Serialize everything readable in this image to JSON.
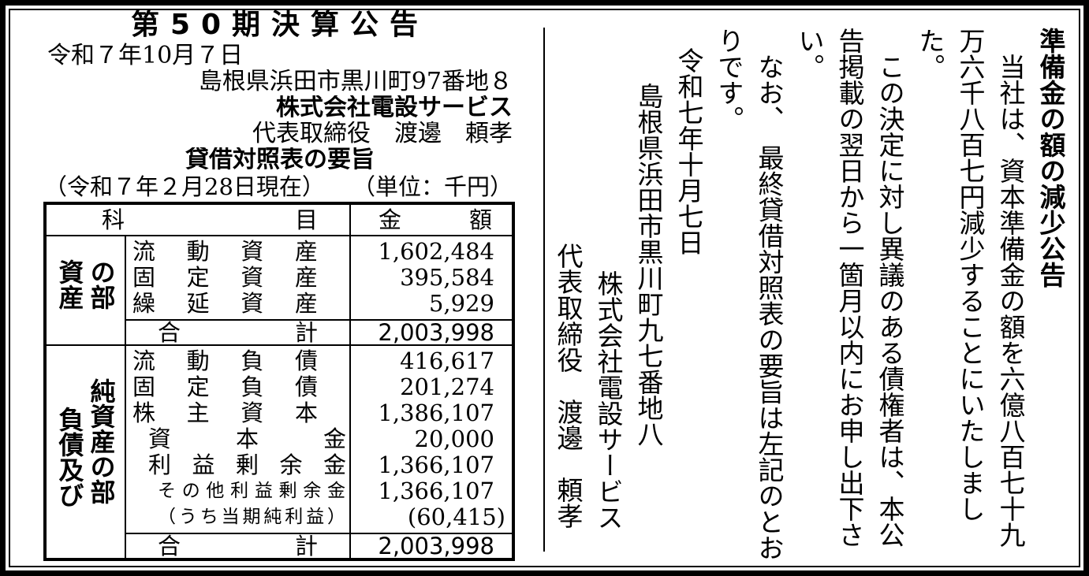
{
  "left": {
    "title": "第50期決算公告",
    "date": "令和７年10月７日",
    "address": "島根県浜田市黒川町97番地８",
    "company": "株式会社電設サービス",
    "representative": "代表取締役　渡邊　頼孝",
    "bs_title": "貸借対照表の要旨",
    "as_of": "（令和７年２月28日現在）",
    "unit": "（単位：千円）"
  },
  "table": {
    "header": {
      "item_1": "科",
      "item_2": "目",
      "amount_1": "金",
      "amount_2": "額"
    },
    "assets": {
      "section": "資産の部",
      "rows": [
        {
          "label": "流動資産",
          "value": "1,602,484"
        },
        {
          "label": "固定資産",
          "value": "395,584"
        },
        {
          "label": "繰延資産",
          "value": "5,929"
        }
      ],
      "total_label_1": "合",
      "total_label_2": "計",
      "total": "2,003,998"
    },
    "liabilities": {
      "section": "負債及び純資産の部",
      "rows": [
        {
          "label": "流動負債",
          "value": "416,617"
        },
        {
          "label": "固定負債",
          "value": "201,274"
        },
        {
          "label": "株主資本",
          "value": "1,386,107"
        },
        {
          "label": "資本金",
          "value": "20,000"
        },
        {
          "label": "利益剰余金",
          "value": "1,366,107"
        },
        {
          "label": "その他利益剰余金",
          "value": "1,366,107"
        },
        {
          "label": "（うち当期純利益）",
          "value": "(60,415)"
        }
      ],
      "total_label_1": "合",
      "total_label_2": "計",
      "total": "2,003,998"
    }
  },
  "notice": {
    "title": "準備金の額の減少公告",
    "lines": [
      "当社は、資本準備金の額を六億八百七十九",
      "万六千八百七円減少することにいたしまし",
      "た。",
      "この決定に対し異議のある債権者は、本公",
      "告掲載の翌日から一箇月以内にお申し出下さ",
      "い。",
      "なお、　最終貸借対照表の要旨は左記のとお",
      "りです。"
    ],
    "date": "令和七年十月七日",
    "address": "島根県浜田市黒川町九七番地八",
    "company": "株式会社電設サービス",
    "representative": "代表取締役　渡邊　頼孝"
  }
}
